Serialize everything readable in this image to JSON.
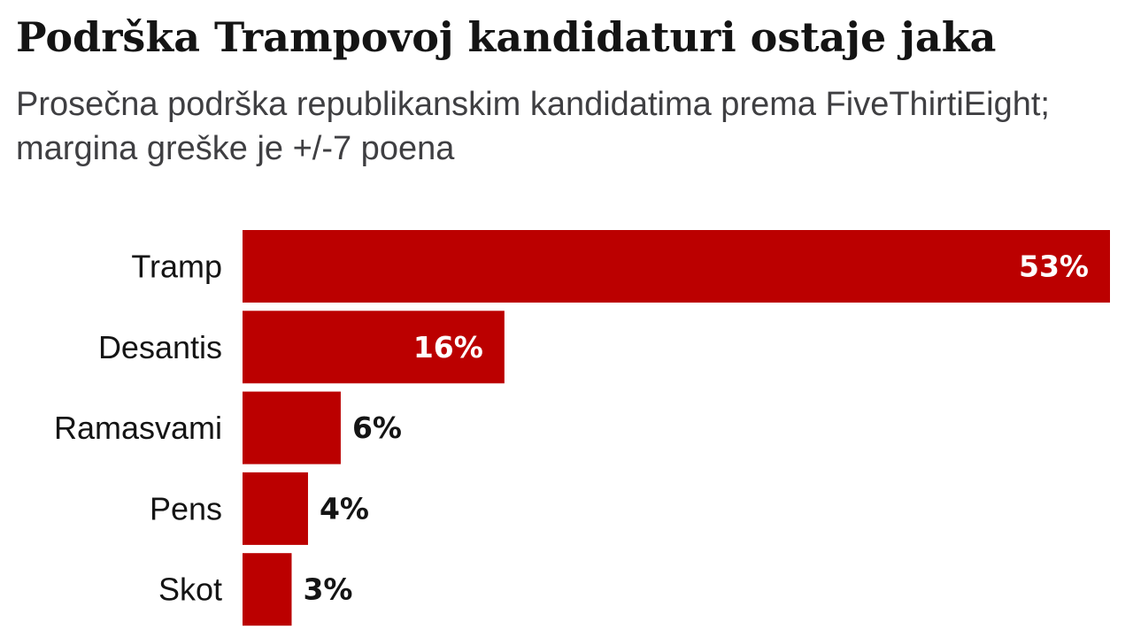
{
  "title": "Podrška Trampovoj kandidaturi ostaje jaka",
  "subtitle": "Prosečna podrška republikanskim kandidatima prema FiveThirtiEight; margina greške je +/-7 poena",
  "colors": {
    "bar": "#bb0000",
    "label_inside": "#ffffff",
    "label_outside": "#141414"
  },
  "chart_data": {
    "type": "bar",
    "orientation": "horizontal",
    "categories": [
      "Tramp",
      "Desantis",
      "Ramasvami",
      "Pens",
      "Skot"
    ],
    "values": [
      53,
      16,
      6,
      4,
      3
    ],
    "value_labels": [
      "53%",
      "16%",
      "6%",
      "4%",
      "3%"
    ],
    "unit": "%",
    "xlim": [
      0,
      53
    ],
    "grid": false,
    "legend": "none"
  }
}
